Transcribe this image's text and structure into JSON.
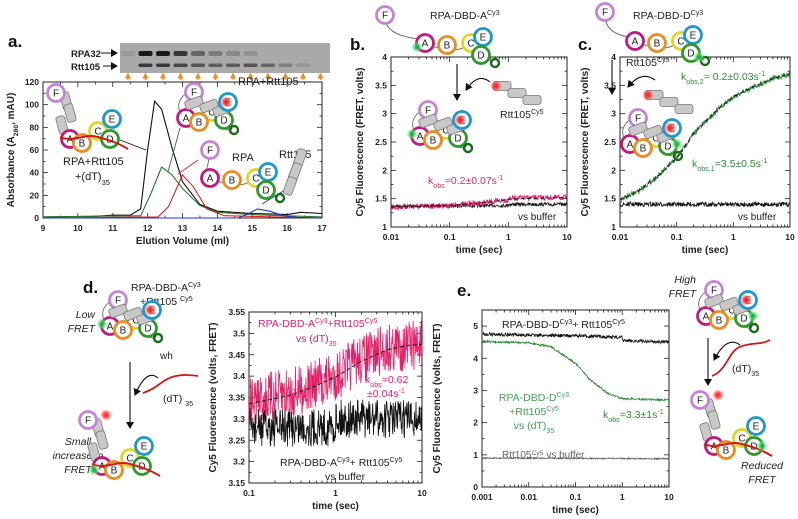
{
  "panel_labels": [
    "a.",
    "b.",
    "c.",
    "d.",
    "e."
  ],
  "domain_letters": [
    "A",
    "B",
    "C",
    "D",
    "E",
    "F"
  ],
  "colors": {
    "A": "#c2187f",
    "B": "#e88d1e",
    "C": "#e3d622",
    "D": "#2e9a2e",
    "E": "#1d97cf",
    "F": "#c583d6",
    "pink": "#e8206a",
    "green": "#2f8a3a",
    "cy3": "#39c45a",
    "cy5": "#e02020"
  },
  "gel": {
    "bands": [
      "RPA32",
      "Rtt105"
    ],
    "band_intensity": {
      "RPA32": [
        0.1,
        0.95,
        0.95,
        0.75,
        0.45,
        0.3,
        0.22,
        0.15,
        0,
        0,
        0,
        0
      ],
      "Rtt105": [
        0,
        0.75,
        0.75,
        0.65,
        0.55,
        0.5,
        0.5,
        0.55,
        0.45,
        0.28,
        0.12,
        0
      ]
    }
  },
  "chart_data": [
    {
      "id": "a",
      "type": "line",
      "xscale": "linear",
      "xlim": [
        9,
        17
      ],
      "ylim": [
        0,
        120
      ],
      "xticks": [
        9,
        10,
        11,
        12,
        13,
        14,
        15,
        16,
        17
      ],
      "yticks": [
        0,
        20,
        40,
        60,
        80,
        100,
        120
      ],
      "xlabel": "Elution Volume (ml)",
      "ylabel": [
        [
          "Absorbance (A"
        ],
        [
          "280",
          "sub"
        ],
        [
          ", mAU)"
        ]
      ],
      "series": [
        {
          "name": "RPA+Rtt105+(dT)35",
          "color": "#111111",
          "points": [
            [
              9,
              1
            ],
            [
              10.5,
              1.5
            ],
            [
              11,
              2.5
            ],
            [
              11.5,
              2.5
            ],
            [
              11.8,
              8
            ],
            [
              12,
              60
            ],
            [
              12.2,
              103
            ],
            [
              12.4,
              96
            ],
            [
              12.7,
              62
            ],
            [
              13,
              32
            ],
            [
              13.5,
              12
            ],
            [
              14,
              6
            ],
            [
              15,
              4
            ],
            [
              15.6,
              3.5
            ],
            [
              16,
              3
            ],
            [
              16.4,
              5
            ],
            [
              17,
              4
            ]
          ]
        },
        {
          "name": "RPA+Rtt105",
          "color": "#2a7a2a",
          "points": [
            [
              9,
              1
            ],
            [
              11.8,
              2
            ],
            [
              12.1,
              22
            ],
            [
              12.4,
              45
            ],
            [
              12.7,
              38
            ],
            [
              13,
              26
            ],
            [
              13.5,
              11
            ],
            [
              14,
              5
            ],
            [
              15,
              3
            ],
            [
              17,
              1
            ]
          ]
        },
        {
          "name": "RPA",
          "color": "#e02020",
          "points": [
            [
              9,
              0
            ],
            [
              12.3,
              1
            ],
            [
              12.6,
              10
            ],
            [
              13,
              38
            ],
            [
              13.3,
              28
            ],
            [
              13.7,
              8
            ],
            [
              14.2,
              2
            ],
            [
              17,
              0
            ]
          ]
        },
        {
          "name": "Rtt105",
          "color": "#2233cc",
          "points": [
            [
              9,
              0
            ],
            [
              14.6,
              0
            ],
            [
              14.9,
              4
            ],
            [
              15.15,
              8
            ],
            [
              15.5,
              6
            ],
            [
              15.9,
              2
            ],
            [
              16.3,
              0.5
            ],
            [
              17,
              0
            ]
          ]
        }
      ],
      "labels": {
        "rpa_rtt": [
          [
            "RPA+Rtt105"
          ]
        ],
        "rpa": [
          [
            "RPA"
          ]
        ],
        "rtt": [
          [
            "Rtt105"
          ]
        ],
        "dna1": [
          [
            "RPA+Rtt105"
          ]
        ],
        "dna2": [
          [
            "+(dT)"
          ],
          [
            "35",
            "sub"
          ]
        ]
      }
    },
    {
      "id": "b",
      "type": "line",
      "xscale": "log",
      "xlim": [
        0.01,
        10
      ],
      "ylim": [
        1,
        4
      ],
      "xticks": [
        0.01,
        0.1,
        1,
        10
      ],
      "yticks": [
        1,
        1.5,
        2,
        2.5,
        3,
        3.5,
        4
      ],
      "xlabel": "time (sec)",
      "ylabel": [
        [
          "Cy5 Fluorescence (FRET, volts)"
        ]
      ],
      "series": [
        {
          "name": "vs buffer",
          "color": "#111111",
          "noise": 0.03,
          "points": [
            [
              0.01,
              1.37
            ],
            [
              0.99,
              1.38
            ],
            [
              1,
              1.4
            ],
            [
              10,
              1.4
            ]
          ]
        },
        {
          "name": "RPA-DBD-A Cy3 + Rtt105 Cy5",
          "color": "#e8206a",
          "noise": 0.05,
          "points": [
            [
              0.01,
              1.35
            ],
            [
              0.1,
              1.38
            ],
            [
              0.5,
              1.44
            ],
            [
              0.99,
              1.48
            ],
            [
              1,
              1.51
            ],
            [
              10,
              1.52
            ]
          ]
        },
        {
          "name": "fit",
          "color": "#111111",
          "dashed": true,
          "points": [
            [
              0.01,
              1.35
            ],
            [
              0.1,
              1.38
            ],
            [
              0.5,
              1.44
            ],
            [
              1,
              1.49
            ],
            [
              3,
              1.51
            ],
            [
              10,
              1.52
            ]
          ]
        }
      ],
      "labels": {
        "title": [
          [
            "RPA-DBD-A"
          ],
          [
            "Cy3",
            "sup"
          ]
        ],
        "rtt": [
          [
            "Rtt105"
          ],
          [
            "Cy5",
            "sup"
          ]
        ],
        "kobs": [
          [
            "k"
          ],
          [
            "obs",
            "sub"
          ],
          [
            "=0.2±0.07s"
          ],
          [
            "-1",
            "sup"
          ]
        ],
        "buffer": [
          [
            "vs buffer"
          ]
        ]
      }
    },
    {
      "id": "c",
      "type": "line",
      "xscale": "log",
      "xlim": [
        0.01,
        10
      ],
      "ylim": [
        1,
        4
      ],
      "xticks": [
        0.01,
        0.1,
        1,
        10
      ],
      "yticks": [
        1,
        1.5,
        2,
        2.5,
        3,
        3.5,
        4
      ],
      "xlabel": "time (sec)",
      "ylabel": [
        [
          "Cy5 Fluorescence (FRET, volts)"
        ]
      ],
      "series": [
        {
          "name": "vs buffer",
          "color": "#111111",
          "noise": 0.04,
          "points": [
            [
              0.01,
              1.4
            ],
            [
              10,
              1.4
            ]
          ]
        },
        {
          "name": "RPA-DBD-D Cy3 + Rtt105 Cy5",
          "color": "#2f8a3a",
          "noise": 0.05,
          "points": [
            [
              0.01,
              1.48
            ],
            [
              0.02,
              1.62
            ],
            [
              0.05,
              1.92
            ],
            [
              0.1,
              2.22
            ],
            [
              0.2,
              2.65
            ],
            [
              0.5,
              3.05
            ],
            [
              1,
              3.3
            ],
            [
              2,
              3.45
            ],
            [
              5,
              3.62
            ],
            [
              10,
              3.7
            ]
          ]
        },
        {
          "name": "fit",
          "color": "#111111",
          "dashed": true,
          "points": [
            [
              0.01,
              1.48
            ],
            [
              0.02,
              1.62
            ],
            [
              0.05,
              1.92
            ],
            [
              0.1,
              2.22
            ],
            [
              0.2,
              2.65
            ],
            [
              0.5,
              3.05
            ],
            [
              1,
              3.3
            ],
            [
              2,
              3.45
            ],
            [
              5,
              3.62
            ],
            [
              10,
              3.7
            ]
          ]
        }
      ],
      "labels": {
        "title": [
          [
            "RPA-DBD-D"
          ],
          [
            "Cy3",
            "sup"
          ]
        ],
        "rtt": [
          [
            "Rtt105"
          ],
          [
            "Cy5",
            "sup"
          ]
        ],
        "kobs2": [
          [
            "k"
          ],
          [
            "obs,2",
            "sub"
          ],
          [
            "= 0.2±0.03s"
          ],
          [
            "-1",
            "sup"
          ]
        ],
        "kobs1": [
          [
            "k"
          ],
          [
            "obs,1",
            "sub"
          ],
          [
            "=3.5±0.5s"
          ],
          [
            "-1",
            "sup"
          ]
        ],
        "buffer": [
          [
            "vs buffer"
          ]
        ]
      }
    },
    {
      "id": "d",
      "type": "line",
      "xscale": "log",
      "xlim": [
        0.1,
        10
      ],
      "ylim": [
        3.15,
        3.55
      ],
      "xticks": [
        0.1,
        1,
        10
      ],
      "yticks": [
        3.15,
        3.2,
        3.25,
        3.3,
        3.35,
        3.4,
        3.45,
        3.5,
        3.55
      ],
      "xlabel": "time (sec)",
      "ylabel": [
        [
          "Cy5 Fluorescence (volts, FRET)"
        ]
      ],
      "series": [
        {
          "name": "RPA-DBD-A Cy3 + Rtt105 Cy5 vs (dT)35",
          "color": "#e8206a",
          "noise": 0.06,
          "points": [
            [
              0.1,
              3.34
            ],
            [
              0.3,
              3.36
            ],
            [
              0.6,
              3.38
            ],
            [
              0.99,
              3.4
            ],
            [
              1,
              3.4
            ],
            [
              2,
              3.44
            ],
            [
              4,
              3.465
            ],
            [
              10,
              3.475
            ]
          ]
        },
        {
          "name": "RPA-DBD-A Cy3 + Rtt105 Cy5 vs buffer",
          "color": "#111111",
          "noise": 0.045,
          "points": [
            [
              0.1,
              3.28
            ],
            [
              0.99,
              3.28
            ],
            [
              1,
              3.3
            ],
            [
              10,
              3.3
            ]
          ]
        },
        {
          "name": "fit",
          "color": "#111111",
          "dashed": true,
          "points": [
            [
              0.1,
              3.335
            ],
            [
              0.3,
              3.355
            ],
            [
              0.6,
              3.378
            ],
            [
              1,
              3.398
            ],
            [
              2,
              3.435
            ],
            [
              4,
              3.462
            ],
            [
              7,
              3.472
            ],
            [
              10,
              3.474
            ]
          ]
        }
      ],
      "labels": {
        "head1": [
          [
            "RPA-DBD-A"
          ],
          [
            "Cy3",
            "sup"
          ]
        ],
        "head2": [
          [
            "+Rtt105 "
          ],
          [
            "Cy5",
            "sup"
          ]
        ],
        "low_fret": [
          "Low",
          "FRET"
        ],
        "wh": [
          [
            "wh"
          ]
        ],
        "dt": [
          [
            "(dT) "
          ],
          [
            "35",
            "sub"
          ]
        ],
        "small_increase": [
          "Small",
          "increase in",
          "FRET"
        ],
        "pink1": [
          [
            "RPA-DBD-A"
          ],
          [
            "Cy3",
            "sup"
          ],
          [
            "+Rtt105"
          ],
          [
            "Cy5",
            "sup"
          ]
        ],
        "pink2": [
          [
            "vs (dT)"
          ],
          [
            "35",
            "sub"
          ]
        ],
        "kobs1": [
          [
            "k"
          ],
          [
            "obs",
            "sub"
          ],
          [
            "=0.62"
          ]
        ],
        "kobs2": [
          [
            "±0.04s"
          ],
          [
            "-1",
            "sup"
          ]
        ],
        "black1": [
          [
            "RPA-DBD-A"
          ],
          [
            "Cy3",
            "sup"
          ],
          [
            "+ Rtt105"
          ],
          [
            "Cy5",
            "sup"
          ]
        ],
        "black2": [
          [
            "vs buffer"
          ]
        ]
      }
    },
    {
      "id": "e",
      "type": "line",
      "xscale": "log",
      "xlim": [
        0.001,
        10
      ],
      "ylim": [
        0,
        5.5
      ],
      "xticks": [
        0.001,
        0.01,
        0.1,
        1,
        10
      ],
      "yticks": [
        0,
        1,
        2,
        3,
        4,
        5
      ],
      "xlabel": "time (sec)",
      "ylabel": [
        [
          "Cy5 Fluorescence (volts, FRET)"
        ]
      ],
      "series": [
        {
          "name": "RPA-DBD-D Cy3 + Rtt105 Cy5 vs buffer",
          "color": "#111111",
          "noise": 0.05,
          "points": [
            [
              0.001,
              4.75
            ],
            [
              0.01,
              4.72
            ],
            [
              0.1,
              4.7
            ],
            [
              0.99,
              4.65
            ],
            [
              1,
              4.55
            ],
            [
              10,
              4.5
            ]
          ]
        },
        {
          "name": "RPA-DBD-D Cy3 + Rtt105 Cy5 vs (dT)35",
          "color": "#2f8a3a",
          "noise": 0.03,
          "points": [
            [
              0.001,
              4.52
            ],
            [
              0.01,
              4.48
            ],
            [
              0.03,
              4.35
            ],
            [
              0.1,
              3.85
            ],
            [
              0.2,
              3.35
            ],
            [
              0.5,
              2.9
            ],
            [
              1,
              2.75
            ],
            [
              10,
              2.7
            ]
          ]
        },
        {
          "name": "Rtt105 Cy5 vs buffer",
          "color": "#666666",
          "noise": 0.02,
          "points": [
            [
              0.001,
              0.9
            ],
            [
              10,
              0.88
            ]
          ]
        }
      ],
      "labels": {
        "black1": [
          [
            "RPA-DBD-D"
          ],
          [
            "Cy3",
            "sup"
          ],
          [
            "+ Rtt105"
          ],
          [
            "Cy5",
            "sup"
          ]
        ],
        "green1": [
          [
            "RPA-DBD-D"
          ],
          [
            "Cy3",
            "sup"
          ]
        ],
        "green2": [
          [
            "+Rtt105"
          ],
          [
            "Cy5",
            "sup"
          ]
        ],
        "green3": [
          [
            "vs (dT)"
          ],
          [
            "35",
            "sub"
          ]
        ],
        "kobs": [
          [
            "k"
          ],
          [
            "obs",
            "sub"
          ],
          [
            "=3.3±1s"
          ],
          [
            "-1",
            "sup"
          ]
        ],
        "gray": [
          [
            "Rtt105"
          ],
          [
            "Cy5",
            "sup"
          ],
          [
            " vs buffer"
          ]
        ],
        "high_fret": [
          "High",
          "FRET"
        ],
        "dt": [
          [
            "(dT)"
          ],
          [
            "35",
            "sub"
          ]
        ],
        "reduced_fret": [
          "Reduced",
          "FRET"
        ]
      }
    }
  ]
}
